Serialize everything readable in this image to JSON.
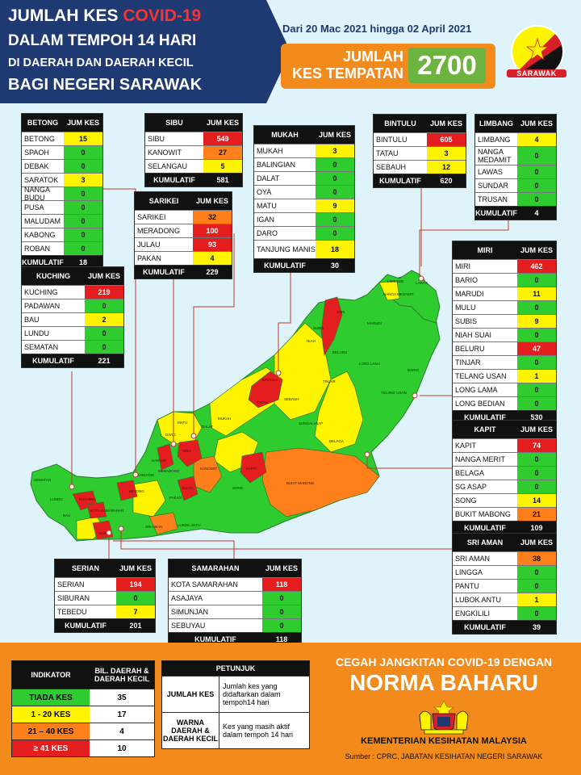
{
  "header": {
    "line1_prefix": "JUMLAH KES",
    "line1_highlight": "COVID-19",
    "line2": "DALAM TEMPOH 14 HARI",
    "line3": "DI DAERAH DAN DAERAH KECIL",
    "line4": "BAGI NEGERI SARAWAK",
    "date_range": "Dari 20 Mac 2021 hingga 02 April 2021",
    "total_label_1": "JUMLAH",
    "total_label_2": "KES TEMPATAN",
    "total_value": "2700",
    "flag_label": "SARAWAK"
  },
  "colors": {
    "tiada": "#2ecc2e",
    "low": "#fff400",
    "mid": "#ff7f1a",
    "high": "#e41e1e",
    "navy": "#1f3a73",
    "orange": "#f28b1c"
  },
  "divisions": [
    {
      "name": "BETONG",
      "col": "JUM KES",
      "total_label": "KUMULATIF",
      "total": "18",
      "rows": [
        [
          "BETONG",
          "15",
          "y"
        ],
        [
          "SPAOH",
          "0",
          "g"
        ],
        [
          "DEBAK",
          "0",
          "g"
        ],
        [
          "SARATOK",
          "3",
          "y"
        ],
        [
          "NANGA BUDU",
          "0",
          "g"
        ],
        [
          "PUSA",
          "0",
          "g"
        ],
        [
          "MALUDAM",
          "0",
          "g"
        ],
        [
          "KABONG",
          "0",
          "g"
        ],
        [
          "ROBAN",
          "0",
          "g"
        ]
      ]
    },
    {
      "name": "SIBU",
      "col": "JUM KES",
      "total_label": "KUMULATIF",
      "total": "581",
      "rows": [
        [
          "SIBU",
          "549",
          "r"
        ],
        [
          "KANOWIT",
          "27",
          "o"
        ],
        [
          "SELANGAU",
          "5",
          "y"
        ]
      ]
    },
    {
      "name": "SARIKEI",
      "col": "JUM KES",
      "total_label": "KUMULATIF",
      "total": "229",
      "rows": [
        [
          "SARIKEI",
          "32",
          "o"
        ],
        [
          "MERADONG",
          "100",
          "r"
        ],
        [
          "JULAU",
          "93",
          "r"
        ],
        [
          "PAKAN",
          "4",
          "y"
        ]
      ]
    },
    {
      "name": "MUKAH",
      "col": "JUM KES",
      "total_label": "KUMULATIF",
      "total": "30",
      "rows": [
        [
          "MUKAH",
          "3",
          "y"
        ],
        [
          "BALINGIAN",
          "0",
          "g"
        ],
        [
          "DALAT",
          "0",
          "g"
        ],
        [
          "OYA",
          "0",
          "g"
        ],
        [
          "MATU",
          "9",
          "y"
        ],
        [
          "IGAN",
          "0",
          "g"
        ],
        [
          "DARO",
          "0",
          "g"
        ],
        [
          "TANJUNG MANIS",
          "18",
          "y"
        ]
      ]
    },
    {
      "name": "BINTULU",
      "col": "JUM KES",
      "total_label": "KUMULATIF",
      "total": "620",
      "rows": [
        [
          "BINTULU",
          "605",
          "r"
        ],
        [
          "TATAU",
          "3",
          "y"
        ],
        [
          "SEBAUH",
          "12",
          "y"
        ]
      ]
    },
    {
      "name": "LIMBANG",
      "col": "JUM KES",
      "total_label": "KUMULATIF",
      "total": "4",
      "rows": [
        [
          "LIMBANG",
          "4",
          "y"
        ],
        [
          "NANGA MEDAMIT",
          "0",
          "g"
        ],
        [
          "LAWAS",
          "0",
          "g"
        ],
        [
          "SUNDAR",
          "0",
          "g"
        ],
        [
          "TRUSAN",
          "0",
          "g"
        ]
      ]
    },
    {
      "name": "KUCHING",
      "col": "JUM KES",
      "total_label": "KUMULATIF",
      "total": "221",
      "rows": [
        [
          "KUCHING",
          "219",
          "r"
        ],
        [
          "PADAWAN",
          "0",
          "g"
        ],
        [
          "BAU",
          "2",
          "y"
        ],
        [
          "LUNDU",
          "0",
          "g"
        ],
        [
          "SEMATAN",
          "0",
          "g"
        ]
      ]
    },
    {
      "name": "MIRI",
      "col": "JUM KES",
      "total_label": "KUMULATIF",
      "total": "530",
      "rows": [
        [
          "MIRI",
          "462",
          "r"
        ],
        [
          "BARIO",
          "0",
          "g"
        ],
        [
          "MARUDI",
          "11",
          "y"
        ],
        [
          "MULU",
          "0",
          "g"
        ],
        [
          "SUBIS",
          "9",
          "y"
        ],
        [
          "NIAH SUAI",
          "0",
          "g"
        ],
        [
          "BELURU",
          "47",
          "r"
        ],
        [
          "TINJAR",
          "0",
          "g"
        ],
        [
          "TELANG USAN",
          "1",
          "y"
        ],
        [
          "LONG LAMA",
          "0",
          "g"
        ],
        [
          "LONG BEDIAN",
          "0",
          "g"
        ]
      ]
    },
    {
      "name": "KAPIT",
      "col": "JUM KES",
      "total_label": "KUMULATIF",
      "total": "109",
      "rows": [
        [
          "KAPIT",
          "74",
          "r"
        ],
        [
          "NANGA MERIT",
          "0",
          "g"
        ],
        [
          "BELAGA",
          "0",
          "g"
        ],
        [
          "SG ASAP",
          "0",
          "g"
        ],
        [
          "SONG",
          "14",
          "y"
        ],
        [
          "BUKIT MABONG",
          "21",
          "o"
        ]
      ]
    },
    {
      "name": "SRI AMAN",
      "col": "JUM KES",
      "total_label": "KUMULATIF",
      "total": "39",
      "rows": [
        [
          "SRI AMAN",
          "38",
          "o"
        ],
        [
          "LINGGA",
          "0",
          "g"
        ],
        [
          "PANTU",
          "0",
          "g"
        ],
        [
          "LUBOK ANTU",
          "1",
          "y"
        ],
        [
          "ENGKILILI",
          "0",
          "g"
        ]
      ]
    },
    {
      "name": "SERIAN",
      "col": "JUM KES",
      "total_label": "KUMULATIF",
      "total": "201",
      "rows": [
        [
          "SERIAN",
          "194",
          "r"
        ],
        [
          "SIBURAN",
          "0",
          "g"
        ],
        [
          "TEBEDU",
          "7",
          "y"
        ]
      ]
    },
    {
      "name": "SAMARAHAN",
      "col": "JUM KES",
      "total_label": "KUMULATIF",
      "total": "118",
      "rows": [
        [
          "KOTA SAMARAHAN",
          "118",
          "r"
        ],
        [
          "ASAJAYA",
          "0",
          "g"
        ],
        [
          "SIMUNJAN",
          "0",
          "g"
        ],
        [
          "SEBUYAU",
          "0",
          "g"
        ]
      ]
    }
  ],
  "indicator": {
    "col1": "INDIKATOR",
    "col2": "BIL. DAERAH & DAERAH KECIL",
    "rows": [
      [
        "TIADA KES",
        "35",
        "g"
      ],
      [
        "1 - 20 KES",
        "17",
        "y"
      ],
      [
        "21 – 40 KES",
        "4",
        "o"
      ],
      [
        "≥ 41 KES",
        "10",
        "r"
      ]
    ]
  },
  "petunjuk": {
    "title": "PETUNJUK",
    "rows": [
      [
        "JUMLAH KES",
        "Jumlah kes yang didaftarkan dalam tempoh14 hari"
      ],
      [
        "WARNA DAERAH & DAERAH KECIL",
        "Kes yang masih aktif dalam tempoh 14 hari"
      ]
    ]
  },
  "footer": {
    "slogan_line1": "CEGAH JANGKITAN COVID-19 DENGAN",
    "slogan_line2": "NORMA BAHARU",
    "ministry": "KEMENTERIAN KESIHATAN MALAYSIA",
    "source": "Sumber : CPRC, JABATAN KESIHATAN NEGERI SARAWAK"
  },
  "map_labels": {
    "limbang": "LIMBANG",
    "lawas": "LAWAS",
    "nanga_medamit": "NANGA MEDAMIT",
    "miri": "MIRI",
    "subis": "SUBIS",
    "marudi": "MARUDI",
    "niah": "NIAH",
    "long_lama": "LONG LAMA",
    "telang_usan": "TELANG USAN",
    "bario": "BARIO",
    "beluru": "BELURU",
    "tinjar": "TINJAR",
    "bintulu": "BINTULU",
    "sebauh": "SEBAUH",
    "tatau": "TATAU",
    "belaga": "BELAGA",
    "sungai_asap": "SUNGAI ASAP",
    "kapit": "KAPIT",
    "song": "SONG",
    "bukit_mabong": "BUKIT MABONG",
    "kanowit": "KANOWIT",
    "sibu": "SIBU",
    "mukah": "MUKAH",
    "dalat": "DALAT",
    "matu": "MATU",
    "daro": "DARO",
    "sarikei": "SARIKEI",
    "julau": "JULAU",
    "pakan": "PAKAN",
    "meradong": "MERADONG",
    "betong": "BETONG",
    "saratok": "SARATOK",
    "kuching": "KUCHING",
    "bau": "BAU",
    "lundu": "LUNDU",
    "sematan": "SEMATAN",
    "serian": "SERIAN",
    "sri_aman": "SRI AMAN",
    "lubok_antu": "LUBOK ANTU",
    "samarahan": "KOTA SAMARAHAN"
  }
}
